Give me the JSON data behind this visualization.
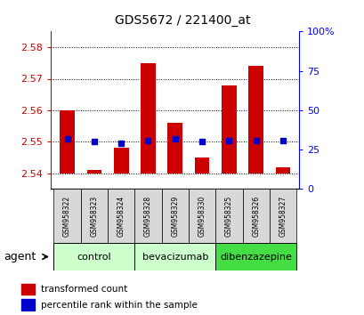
{
  "title": "GDS5672 / 221400_at",
  "samples": [
    "GSM958322",
    "GSM958323",
    "GSM958324",
    "GSM958328",
    "GSM958329",
    "GSM958330",
    "GSM958325",
    "GSM958326",
    "GSM958327"
  ],
  "group_info": [
    {
      "label": "control",
      "start": 0,
      "end": 2,
      "color": "#ccffcc"
    },
    {
      "label": "bevacizumab",
      "start": 3,
      "end": 5,
      "color": "#ccffcc"
    },
    {
      "label": "dibenzazepine",
      "start": 6,
      "end": 8,
      "color": "#44dd44"
    }
  ],
  "red_values": [
    2.56,
    2.541,
    2.548,
    2.575,
    2.556,
    2.545,
    2.568,
    2.574,
    2.542
  ],
  "blue_values_pct": [
    32,
    30,
    29,
    31,
    32,
    30,
    31,
    31,
    31
  ],
  "ymin": 2.535,
  "ymax": 2.585,
  "yticks": [
    2.54,
    2.55,
    2.56,
    2.57,
    2.58
  ],
  "right_yticks": [
    0,
    25,
    50,
    75,
    100
  ],
  "bar_bottom": 2.54,
  "red_color": "#cc0000",
  "blue_color": "#0000cc",
  "legend_red": "transformed count",
  "legend_blue": "percentile rank within the sample",
  "agent_label": "agent"
}
